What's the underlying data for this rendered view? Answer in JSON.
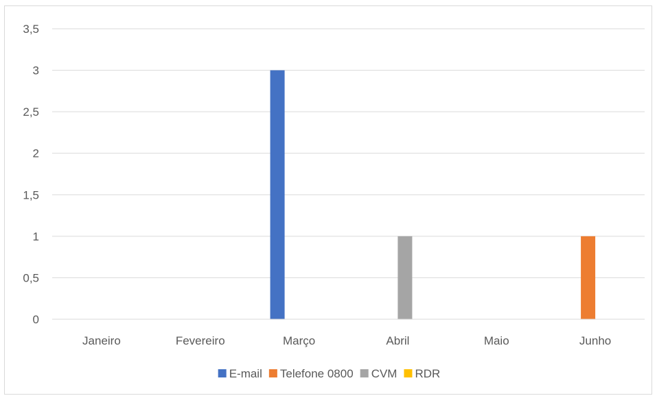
{
  "chart_data": {
    "type": "bar",
    "categories": [
      "Janeiro",
      "Fevereiro",
      "Março",
      "Abril",
      "Maio",
      "Junho"
    ],
    "series": [
      {
        "name": "E-mail",
        "color": "#4472c4",
        "values": [
          0,
          0,
          3,
          0,
          0,
          0
        ]
      },
      {
        "name": "Telefone 0800",
        "color": "#ed7d31",
        "values": [
          0,
          0,
          0,
          0,
          0,
          1
        ]
      },
      {
        "name": "CVM",
        "color": "#a5a5a5",
        "values": [
          0,
          0,
          0,
          1,
          0,
          0
        ]
      },
      {
        "name": "RDR",
        "color": "#ffc000",
        "values": [
          0,
          0,
          0,
          0,
          0,
          0
        ]
      }
    ],
    "yticks": [
      "0",
      "0,5",
      "1",
      "1,5",
      "2",
      "2,5",
      "3",
      "3,5"
    ],
    "ylim": [
      0,
      3.5
    ],
    "grid": true,
    "legend": "bottom",
    "title": "",
    "xlabel": "",
    "ylabel": ""
  }
}
